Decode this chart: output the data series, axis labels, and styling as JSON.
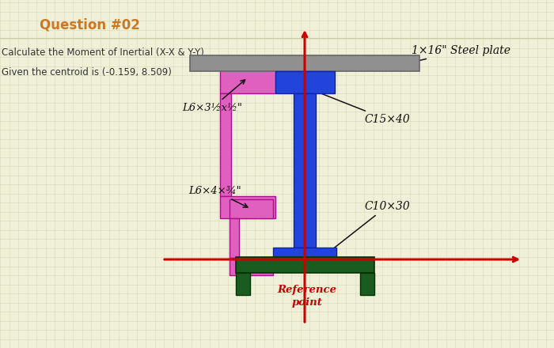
{
  "title": "Question #02",
  "line1": "Calculate the Moment of Inertial (X-X & Y-Y)",
  "line2": "Given the centroid is (-0.159, 8.509)",
  "bg_color": "#f0f0d8",
  "grid_color": "#d8d8b8",
  "title_color": "#cc7722",
  "text_color": "#333333",
  "ref_color": "#cc0000",
  "pink": "#e060c0",
  "blue": "#2244dd",
  "dark_green": "#1a5c20",
  "gray": "#909090",
  "steel_plate_label": "1×16\" Steel plate",
  "c15x40_label": "C15×40",
  "c10x30_label": "C10×30",
  "L_upper_label": "L6×3½x½\"",
  "L_lower_label": "L6×4×¾\"",
  "ref_label": "Reference\npoint"
}
